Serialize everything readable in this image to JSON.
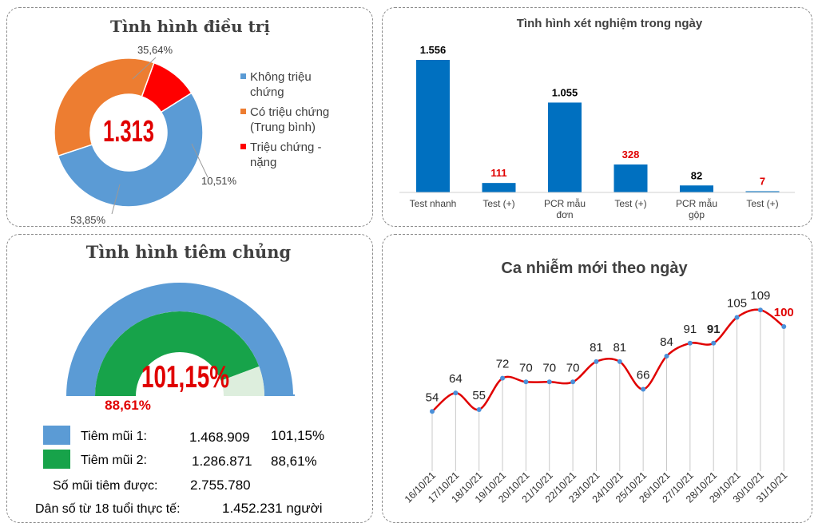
{
  "treatment": {
    "title": "Tình hình điều trị",
    "total": "1.313",
    "chart_data": {
      "type": "pie",
      "title": "Tình hình điều trị",
      "labels": [
        "Không triệu chứng",
        "Có triệu chứng (Trung bình)",
        "Triệu chứng - nặng"
      ],
      "values": [
        53.85,
        35.64,
        10.51
      ],
      "value_labels": [
        "53,85%",
        "35,64%",
        "10,51%"
      ],
      "colors": [
        "#5b9bd5",
        "#ed7d31",
        "#ff0000"
      ],
      "legend_position": "right"
    },
    "legend": [
      {
        "line1": "Không triệu",
        "line2": "chứng"
      },
      {
        "line1": "Có triệu chứng",
        "line2": "(Trung bình)"
      },
      {
        "line1": "Triệu chứng -",
        "line2": "nặng"
      }
    ]
  },
  "testing": {
    "chart_data": {
      "type": "bar",
      "title": "Tình hình xét nghiệm trong ngày",
      "categories": [
        "Test nhanh",
        "Test (+)",
        "PCR mẫu đơn",
        "Test (+)",
        "PCR mẫu gộp",
        "Test (+)"
      ],
      "category_lines": [
        [
          "Test nhanh"
        ],
        [
          "Test (+)"
        ],
        [
          "PCR mẫu",
          "đơn"
        ],
        [
          "Test (+)"
        ],
        [
          "PCR mẫu",
          "gộp"
        ],
        [
          "Test (+)"
        ]
      ],
      "values": [
        1556,
        111,
        1055,
        328,
        82,
        7
      ],
      "value_labels": [
        "1.556",
        "111",
        "1.055",
        "328",
        "82",
        "7"
      ],
      "label_colors": [
        "#000000",
        "#e00000",
        "#000000",
        "#e00000",
        "#000000",
        "#e00000"
      ],
      "bar_color": "#0070c0",
      "ylim": [
        0,
        1600
      ],
      "grid": false
    }
  },
  "vaccination": {
    "title": "Tình hình tiêm chủng",
    "outer_percent": 101.15,
    "inner_percent": 88.61,
    "big_label": "101,15%",
    "inner_label": "88,61%",
    "colors": {
      "dose1": "#5b9bd5",
      "dose2": "#17a34a",
      "remaining": "#ddeedd"
    },
    "rows": [
      {
        "label": "Tiêm mũi 1:",
        "count": "1.468.909",
        "percent": "101,15%"
      },
      {
        "label": "Tiêm mũi 2:",
        "count": "1.286.871",
        "percent": "88,61%"
      }
    ],
    "doses_label": "Số mũi tiêm được:",
    "doses_value": "2.755.780",
    "pop_label": "Dân số từ 18 tuổi thực tế:",
    "pop_value": "1.452.231 người"
  },
  "cases": {
    "chart_data": {
      "type": "line",
      "title": "Ca nhiễm mới theo ngày",
      "x": [
        "16/10/21",
        "17/10/21",
        "18/10/21",
        "19/10/21",
        "20/10/21",
        "21/10/21",
        "22/10/21",
        "23/10/21",
        "24/10/21",
        "25/10/21",
        "26/10/21",
        "27/10/21",
        "28/10/21",
        "29/10/21",
        "30/10/21",
        "31/10/21"
      ],
      "values": [
        54,
        64,
        55,
        72,
        70,
        70,
        70,
        81,
        81,
        66,
        84,
        91,
        91,
        105,
        109,
        100
      ],
      "line_color": "#e00000",
      "marker_color": "#4a90d9",
      "highlight_last": true,
      "grid": false
    }
  }
}
